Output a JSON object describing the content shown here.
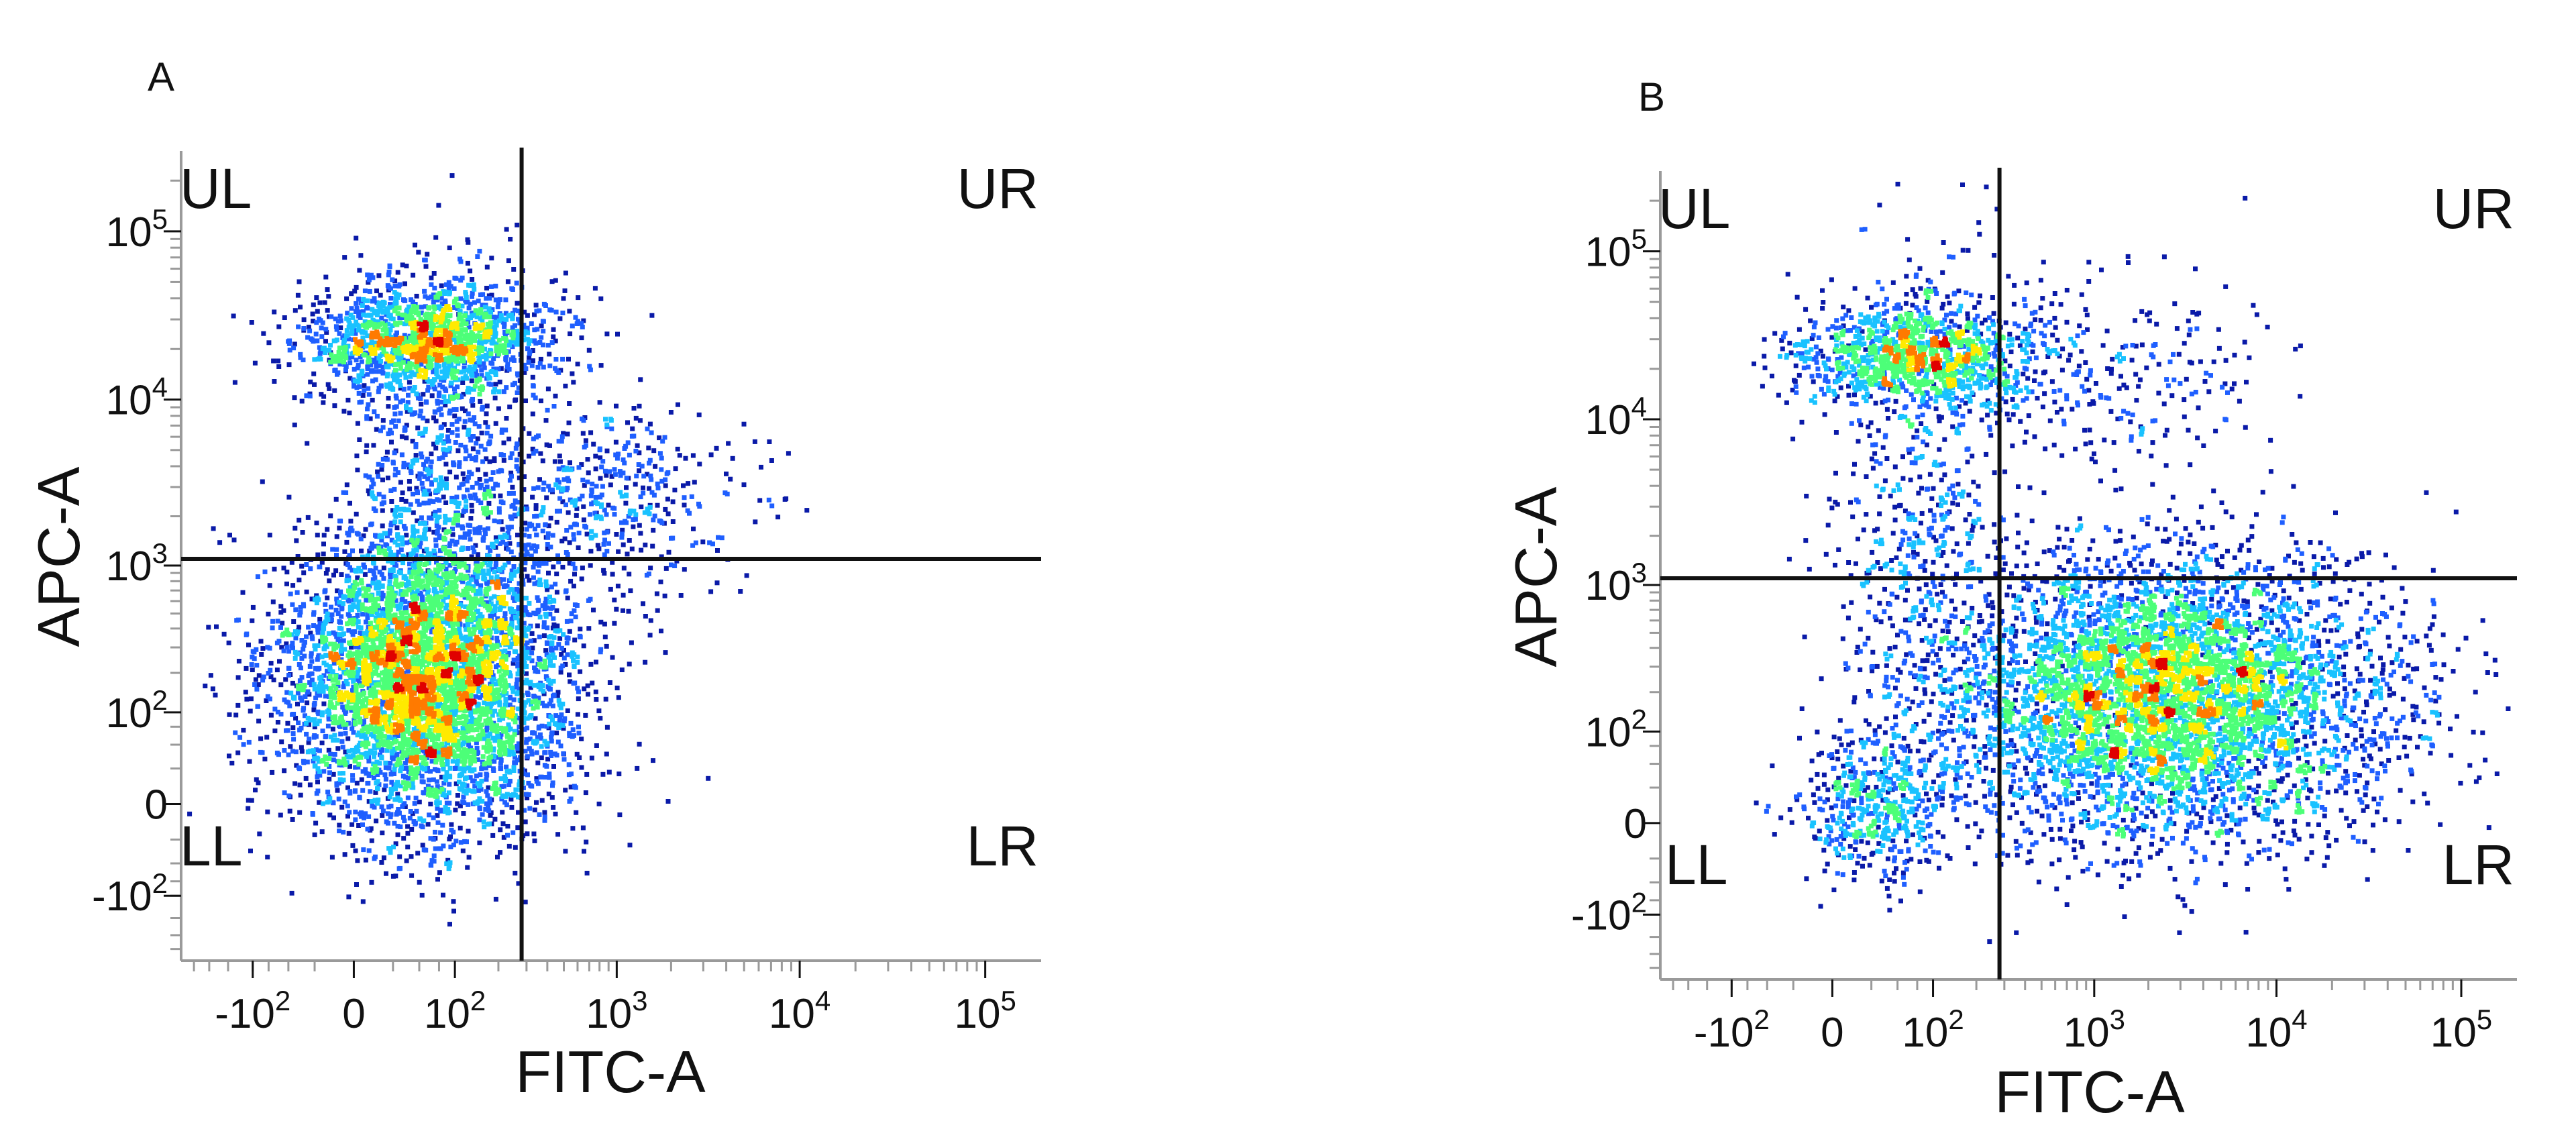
{
  "chart_data": [
    {
      "type": "scatter",
      "panel_label": "A",
      "xlabel": "FITC-A",
      "ylabel": "APC-A",
      "x_scale": "biexponential",
      "y_scale": "biexponential",
      "xlim": [
        -300,
        200000
      ],
      "ylim": [
        -300,
        300000
      ],
      "x_ticks": [
        {
          "value": -100,
          "base": "-10",
          "exp": "2"
        },
        {
          "value": 0,
          "base": "0",
          "exp": ""
        },
        {
          "value": 100,
          "base": "10",
          "exp": "2"
        },
        {
          "value": 1000,
          "base": "10",
          "exp": "3"
        },
        {
          "value": 10000,
          "base": "10",
          "exp": "4"
        },
        {
          "value": 100000,
          "base": "10",
          "exp": "5"
        }
      ],
      "y_ticks": [
        {
          "value": -100,
          "base": "-10",
          "exp": "2"
        },
        {
          "value": 0,
          "base": "0",
          "exp": ""
        },
        {
          "value": 100,
          "base": "10",
          "exp": "2"
        },
        {
          "value": 1000,
          "base": "10",
          "exp": "3"
        },
        {
          "value": 10000,
          "base": "10",
          "exp": "4"
        },
        {
          "value": 100000,
          "base": "10",
          "exp": "5"
        }
      ],
      "gate": {
        "x": 280,
        "y": 1100
      },
      "quadrants": {
        "UL": "UL",
        "UR": "UR",
        "LL": "LL",
        "LR": "LR"
      },
      "populations": [
        {
          "name": "",
          "quadrant": "LL",
          "center": [
            60,
            180
          ],
          "count": 5200,
          "sx": 0.085,
          "sy": 0.09,
          "density": "high"
        },
        {
          "name": "",
          "quadrant": "UL",
          "center": [
            60,
            22000
          ],
          "count": 1500,
          "sx": 0.075,
          "sy": 0.035,
          "density": "medium"
        },
        {
          "name": "",
          "quadrant": "UL",
          "center": [
            70,
            4000
          ],
          "count": 700,
          "sx": 0.06,
          "sy": 0.12,
          "density": "low"
        },
        {
          "name": "",
          "quadrant": "UR",
          "center": [
            700,
            2400
          ],
          "count": 500,
          "sx": 0.09,
          "sy": 0.06,
          "density": "low"
        }
      ]
    },
    {
      "type": "scatter",
      "panel_label": "B",
      "xlabel": "FITC-A",
      "ylabel": "APC-A",
      "x_scale": "biexponential",
      "y_scale": "biexponential",
      "xlim": [
        -300,
        200000
      ],
      "ylim": [
        -300,
        300000
      ],
      "x_ticks": [
        {
          "value": -100,
          "base": "-10",
          "exp": "2"
        },
        {
          "value": 0,
          "base": "0",
          "exp": ""
        },
        {
          "value": 100,
          "base": "10",
          "exp": "2"
        },
        {
          "value": 1000,
          "base": "10",
          "exp": "3"
        },
        {
          "value": 10000,
          "base": "10",
          "exp": "4"
        },
        {
          "value": 100000,
          "base": "10",
          "exp": "5"
        }
      ],
      "y_ticks": [
        {
          "value": -100,
          "base": "-10",
          "exp": "2"
        },
        {
          "value": 0,
          "base": "0",
          "exp": ""
        },
        {
          "value": 100,
          "base": "10",
          "exp": "2"
        },
        {
          "value": 1000,
          "base": "10",
          "exp": "3"
        },
        {
          "value": 10000,
          "base": "10",
          "exp": "4"
        },
        {
          "value": 100000,
          "base": "10",
          "exp": "5"
        }
      ],
      "gate": {
        "x": 280,
        "y": 1100
      },
      "quadrants": {
        "UL": "UL",
        "UR": "UR",
        "LL": "LL",
        "LR": "LR"
      },
      "populations": [
        {
          "name": "",
          "quadrant": "LR",
          "center": [
            2500,
            180
          ],
          "count": 5200,
          "sx": 0.13,
          "sy": 0.085,
          "density": "high"
        },
        {
          "name": "",
          "quadrant": "UL",
          "center": [
            80,
            24000
          ],
          "count": 1100,
          "sx": 0.07,
          "sy": 0.035,
          "density": "medium"
        },
        {
          "name": "",
          "quadrant": "UL",
          "center": [
            90,
            2500
          ],
          "count": 600,
          "sx": 0.05,
          "sy": 0.17,
          "density": "low"
        },
        {
          "name": "",
          "quadrant": "LL",
          "center": [
            30,
            10
          ],
          "count": 450,
          "sx": 0.045,
          "sy": 0.045,
          "density": "low"
        },
        {
          "name": "",
          "quadrant": "UR",
          "center": [
            1200,
            18000
          ],
          "count": 250,
          "sx": 0.1,
          "sy": 0.06,
          "density": "low"
        }
      ]
    }
  ],
  "colors": {
    "density_scale": [
      "#0a1aa8",
      "#1f5fff",
      "#19c2ff",
      "#4cff78",
      "#ffea00",
      "#ff7a00",
      "#e00000"
    ],
    "axis": "#111111",
    "tick_minor": "#9a9a9a"
  }
}
